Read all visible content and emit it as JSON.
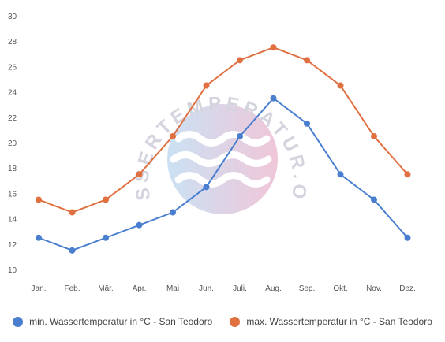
{
  "watermark": "WASSERTEMPERATUR.ORG",
  "colors": {
    "min": "#4a7fd0",
    "max": "#e07040"
  },
  "chart_data": {
    "type": "line",
    "categories": [
      "Jan.",
      "Feb.",
      "Mär.",
      "Apr.",
      "Mai",
      "Jun.",
      "Juli.",
      "Aug.",
      "Sep.",
      "Okt.",
      "Nov.",
      "Dez."
    ],
    "series": [
      {
        "name": "min. Wassertemperatur in °C - San Teodoro",
        "color": "#4a7fd0",
        "values": [
          12.5,
          11.5,
          12.5,
          13.5,
          14.5,
          16.5,
          20.5,
          23.5,
          21.5,
          17.5,
          15.5,
          12.5
        ]
      },
      {
        "name": "max. Wassertemperatur in °C - San Teodoro",
        "color": "#e07040",
        "values": [
          15.5,
          14.5,
          15.5,
          17.5,
          20.5,
          24.5,
          26.5,
          27.5,
          26.5,
          24.5,
          20.5,
          17.5
        ]
      }
    ],
    "title": "",
    "xlabel": "",
    "ylabel": "",
    "ylim": [
      10,
      30
    ],
    "yticks": [
      10,
      12,
      14,
      16,
      18,
      20,
      22,
      24,
      26,
      28,
      30
    ],
    "grid": false,
    "legend": "bottom"
  }
}
